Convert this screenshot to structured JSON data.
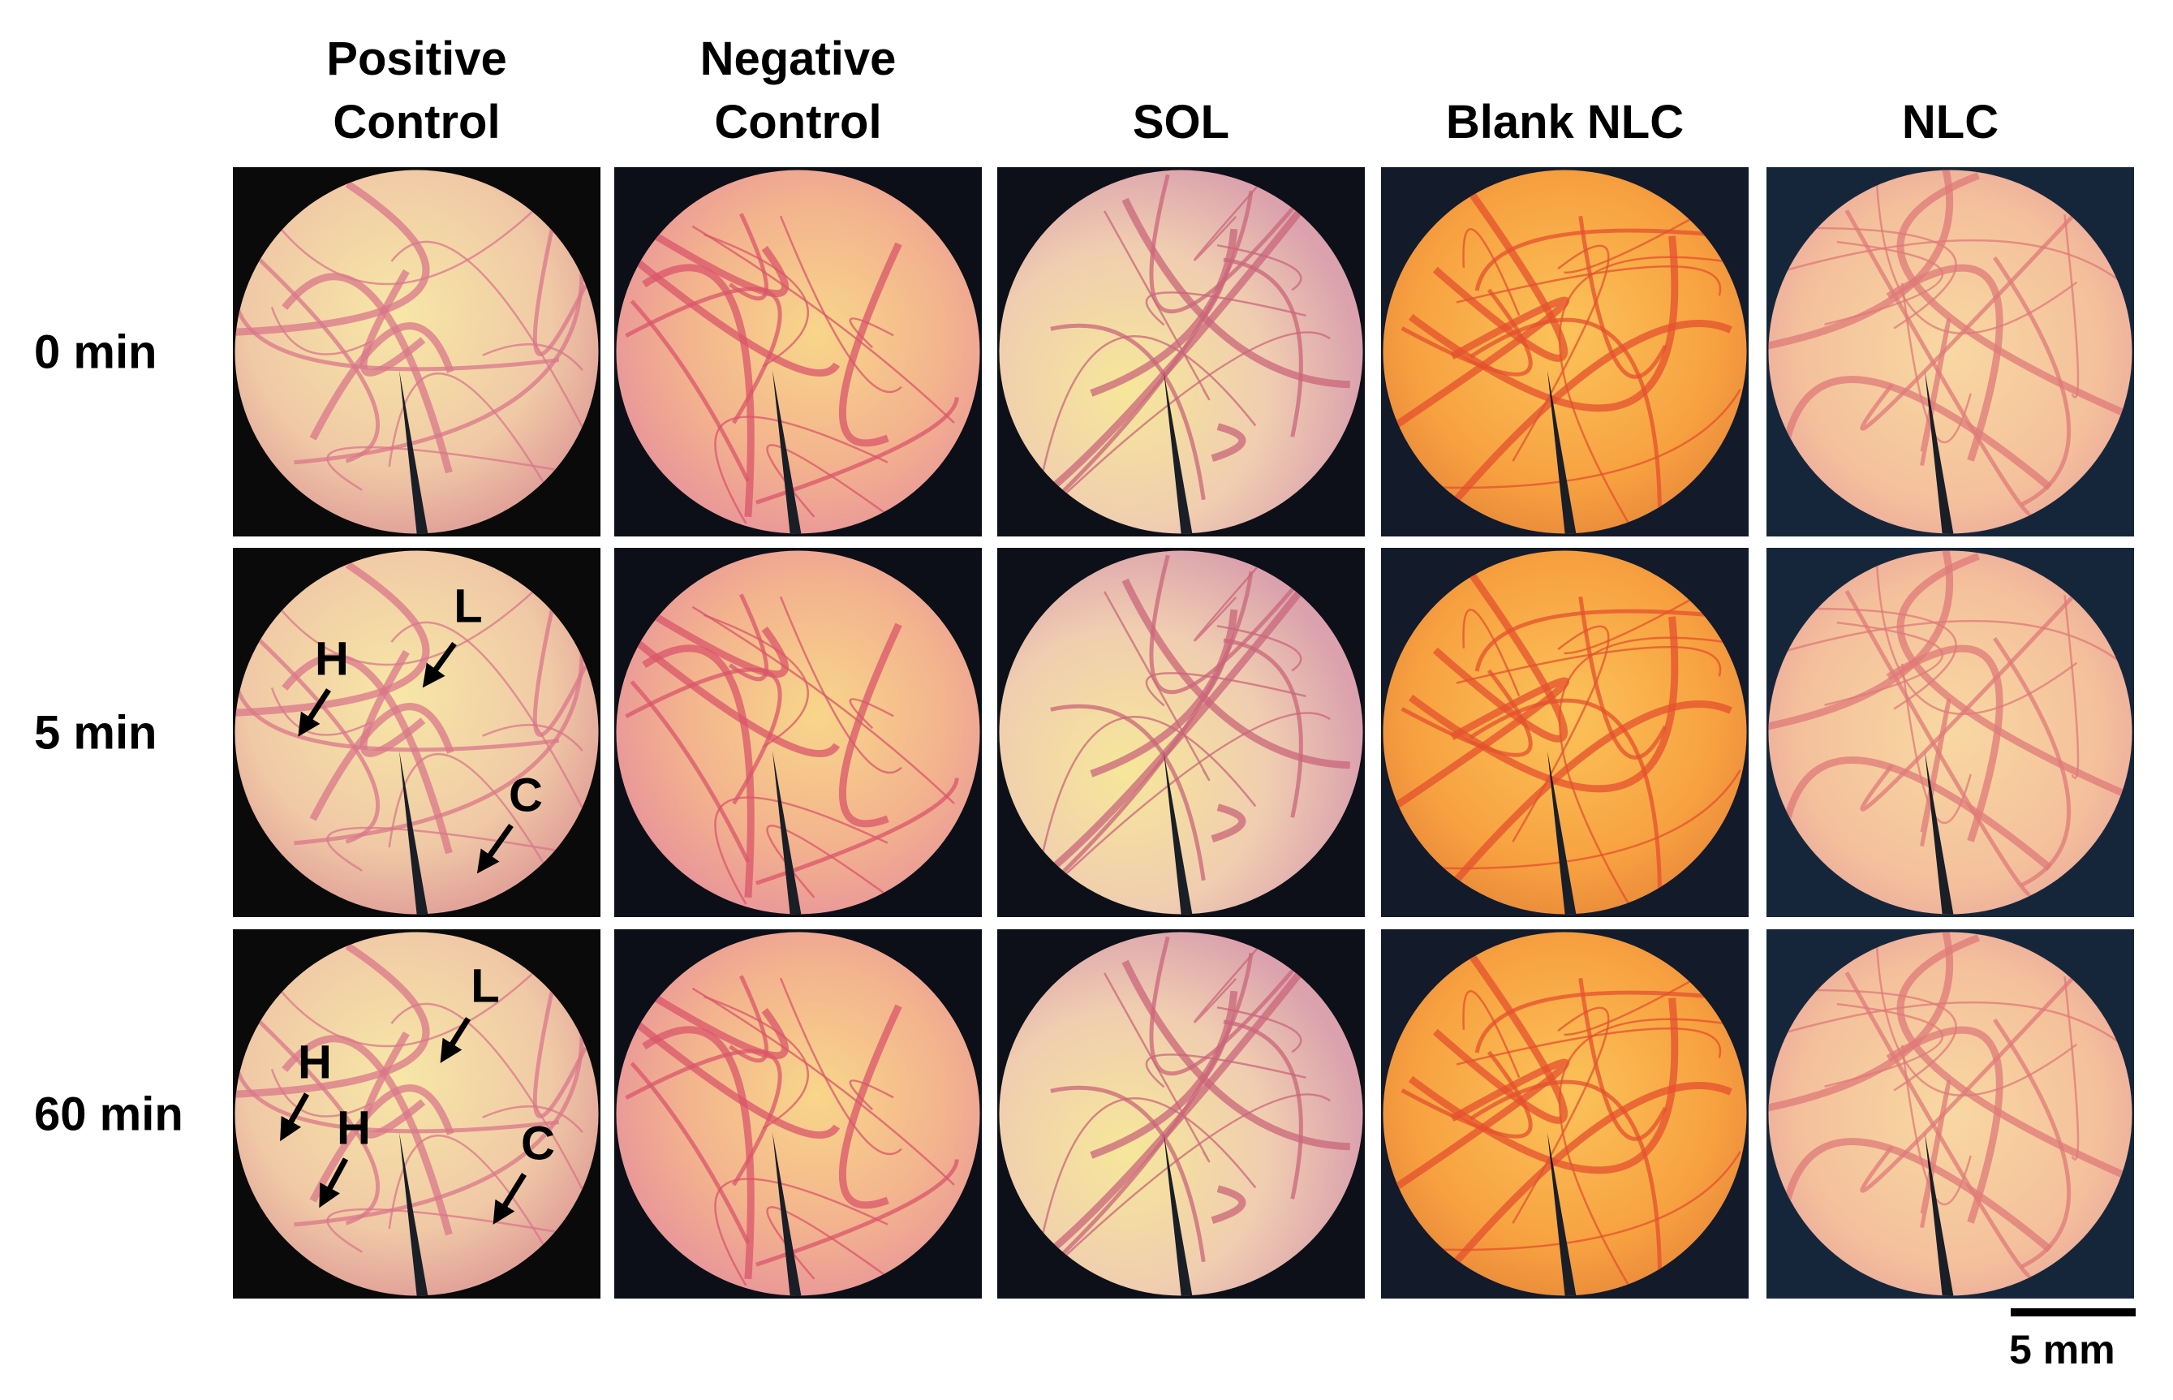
{
  "columns": [
    "Positive Control",
    "Negative Control",
    "SOL",
    "Blank NLC",
    "NLC"
  ],
  "rows": [
    {
      "label": "0 min"
    },
    {
      "label": "5 min",
      "annotations": [
        "L",
        "H",
        "C"
      ]
    },
    {
      "label": "60 min",
      "annotations": [
        "L",
        "H",
        "H",
        "C"
      ]
    }
  ],
  "scale_bar": "5 mm"
}
